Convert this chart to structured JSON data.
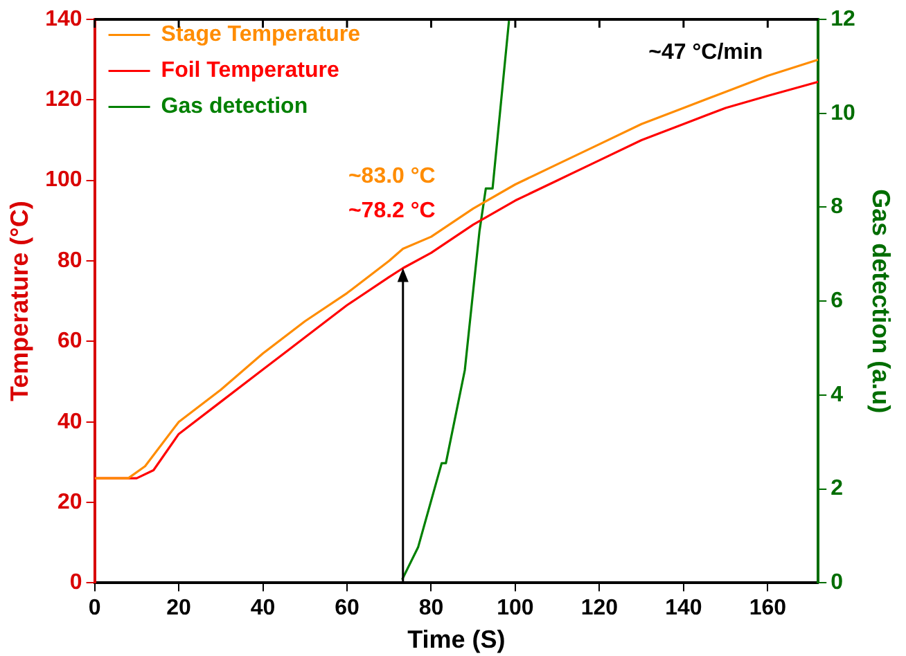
{
  "chart_data": {
    "type": "line",
    "xlabel": "Time (S)",
    "ylabel": "Temperature (°C)",
    "y2label": "Gas detection (a.u)",
    "xlim": [
      0,
      172
    ],
    "xticks": [
      0,
      20,
      40,
      60,
      80,
      100,
      120,
      140,
      160
    ],
    "ylim": [
      0,
      140
    ],
    "yticks": [
      0,
      20,
      40,
      60,
      80,
      100,
      120,
      140
    ],
    "y2lim": [
      0,
      12
    ],
    "y2ticks": [
      0,
      2,
      4,
      6,
      8,
      10,
      12
    ],
    "series": [
      {
        "name": "Stage Temperature",
        "color": "#ff8c00",
        "x": [
          0,
          8,
          12,
          20,
          30,
          40,
          50,
          60,
          70,
          73.3,
          80,
          90,
          100,
          110,
          120,
          130,
          140,
          150,
          160,
          172
        ],
        "values": [
          26,
          26,
          29,
          40,
          48,
          57,
          65,
          72,
          80,
          83.0,
          86,
          93,
          99,
          104,
          109,
          114,
          118,
          122,
          126,
          130
        ]
      },
      {
        "name": "Foil Temperature",
        "color": "#ff0000",
        "x": [
          0,
          10,
          14,
          20,
          30,
          40,
          50,
          60,
          70,
          73.3,
          80,
          90,
          100,
          110,
          120,
          130,
          140,
          150,
          160,
          172
        ],
        "values": [
          26,
          26,
          28,
          37,
          45,
          53,
          61,
          69,
          76,
          78.2,
          82,
          89,
          95,
          100,
          105,
          110,
          114,
          118,
          121,
          124.5
        ]
      },
      {
        "name": "Gas detection",
        "color": "#008000",
        "axis": "y2",
        "x": [
          73.1,
          76.9,
          82.5,
          83.5,
          88,
          91.5,
          93,
          94.6,
          98.5
        ],
        "values": [
          0.07,
          0.76,
          2.55,
          2.55,
          4.53,
          7.5,
          8.4,
          8.4,
          11.97
        ]
      }
    ],
    "annotations": [
      {
        "text": "~83.0 °C",
        "x": 73.3,
        "y": 83.0
      },
      {
        "text": "~78.2 °C",
        "x": 73.3,
        "y": 78.2
      },
      "~47 °C/min"
    ],
    "legend": "top left",
    "grid": false,
    "marker": "none",
    "line_style": "solid"
  }
}
